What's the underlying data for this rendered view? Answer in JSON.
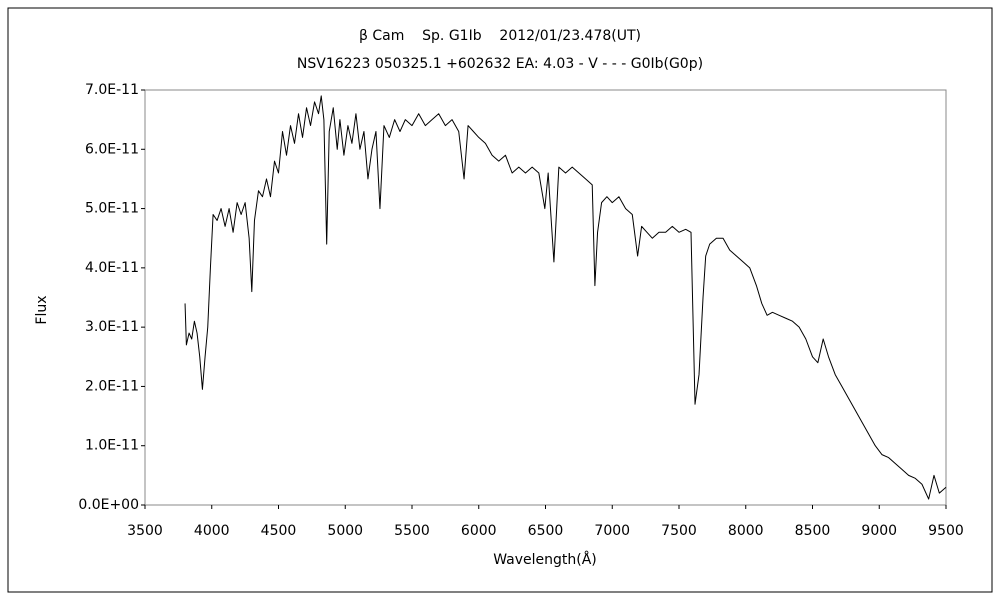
{
  "chart_data": {
    "type": "line",
    "title": "β Cam    Sp. G1Ib    2012/01/23.478(UT)",
    "subtitle": "NSV16223 050325.1 +602632 EA: 4.03 - V - - - G0Ib(G0p)",
    "x_label": "Wavelength(Å)",
    "y_label": "Flux",
    "color": "#000000",
    "grid": false,
    "xlim": [
      3500,
      9500
    ],
    "ylim": [
      0,
      7e-11
    ],
    "xticks": [
      3500,
      4000,
      4500,
      5000,
      5500,
      6000,
      6500,
      7000,
      7500,
      8000,
      8500,
      9000,
      9500
    ],
    "yticks": [
      {
        "value": 0,
        "label": "0.0E+00"
      },
      {
        "value": 1e-11,
        "label": "1.0E-11"
      },
      {
        "value": 2e-11,
        "label": "2.0E-11"
      },
      {
        "value": 3e-11,
        "label": "3.0E-11"
      },
      {
        "value": 4e-11,
        "label": "4.0E-11"
      },
      {
        "value": 5e-11,
        "label": "5.0E-11"
      },
      {
        "value": 6e-11,
        "label": "6.0E-11"
      },
      {
        "value": 7e-11,
        "label": "7.0E-11"
      }
    ],
    "x": [
      3800,
      3810,
      3830,
      3850,
      3870,
      3890,
      3910,
      3930,
      3950,
      3970,
      3990,
      4010,
      4040,
      4070,
      4100,
      4130,
      4160,
      4190,
      4220,
      4250,
      4280,
      4300,
      4320,
      4350,
      4380,
      4410,
      4440,
      4470,
      4500,
      4530,
      4560,
      4590,
      4620,
      4650,
      4680,
      4710,
      4740,
      4770,
      4800,
      4820,
      4840,
      4861,
      4880,
      4910,
      4940,
      4960,
      4990,
      5020,
      5050,
      5080,
      5110,
      5140,
      5170,
      5200,
      5230,
      5260,
      5290,
      5330,
      5370,
      5410,
      5450,
      5500,
      5550,
      5600,
      5650,
      5700,
      5750,
      5800,
      5850,
      5890,
      5920,
      5960,
      6000,
      6050,
      6100,
      6150,
      6200,
      6250,
      6300,
      6350,
      6400,
      6450,
      6495,
      6520,
      6563,
      6600,
      6650,
      6700,
      6750,
      6800,
      6850,
      6870,
      6890,
      6920,
      6960,
      7000,
      7050,
      7100,
      7150,
      7190,
      7220,
      7260,
      7300,
      7350,
      7400,
      7450,
      7500,
      7550,
      7590,
      7620,
      7650,
      7680,
      7700,
      7730,
      7780,
      7830,
      7880,
      7930,
      7980,
      8030,
      8080,
      8120,
      8160,
      8200,
      8250,
      8300,
      8350,
      8400,
      8450,
      8500,
      8540,
      8580,
      8620,
      8670,
      8720,
      8770,
      8820,
      8870,
      8920,
      8970,
      9020,
      9070,
      9120,
      9170,
      9220,
      9270,
      9320,
      9370,
      9410,
      9450,
      9500
    ],
    "values": [
      3.4e-11,
      2.7e-11,
      2.9e-11,
      2.8e-11,
      3.1e-11,
      2.9e-11,
      2.5e-11,
      1.95e-11,
      2.5e-11,
      3e-11,
      4e-11,
      4.9e-11,
      4.8e-11,
      5e-11,
      4.7e-11,
      5e-11,
      4.6e-11,
      5.1e-11,
      4.9e-11,
      5.1e-11,
      4.5e-11,
      3.6e-11,
      4.8e-11,
      5.3e-11,
      5.2e-11,
      5.5e-11,
      5.2e-11,
      5.8e-11,
      5.6e-11,
      6.3e-11,
      5.9e-11,
      6.4e-11,
      6.1e-11,
      6.6e-11,
      6.2e-11,
      6.7e-11,
      6.4e-11,
      6.8e-11,
      6.6e-11,
      6.9e-11,
      6.5e-11,
      4.4e-11,
      6.3e-11,
      6.7e-11,
      6e-11,
      6.5e-11,
      5.9e-11,
      6.4e-11,
      6.1e-11,
      6.6e-11,
      6e-11,
      6.3e-11,
      5.5e-11,
      6e-11,
      6.3e-11,
      5e-11,
      6.4e-11,
      6.2e-11,
      6.5e-11,
      6.3e-11,
      6.5e-11,
      6.4e-11,
      6.6e-11,
      6.4e-11,
      6.5e-11,
      6.6e-11,
      6.4e-11,
      6.5e-11,
      6.3e-11,
      5.5e-11,
      6.4e-11,
      6.3e-11,
      6.2e-11,
      6.1e-11,
      5.9e-11,
      5.8e-11,
      5.9e-11,
      5.6e-11,
      5.7e-11,
      5.6e-11,
      5.7e-11,
      5.6e-11,
      5e-11,
      5.6e-11,
      4.1e-11,
      5.7e-11,
      5.6e-11,
      5.7e-11,
      5.6e-11,
      5.5e-11,
      5.4e-11,
      3.7e-11,
      4.6e-11,
      5.1e-11,
      5.2e-11,
      5.1e-11,
      5.2e-11,
      5e-11,
      4.9e-11,
      4.2e-11,
      4.7e-11,
      4.6e-11,
      4.5e-11,
      4.6e-11,
      4.6e-11,
      4.7e-11,
      4.6e-11,
      4.65e-11,
      4.6e-11,
      1.7e-11,
      2.2e-11,
      3.5e-11,
      4.2e-11,
      4.4e-11,
      4.5e-11,
      4.5e-11,
      4.3e-11,
      4.2e-11,
      4.1e-11,
      4e-11,
      3.7e-11,
      3.4e-11,
      3.2e-11,
      3.25e-11,
      3.2e-11,
      3.15e-11,
      3.1e-11,
      3e-11,
      2.8e-11,
      2.5e-11,
      2.4e-11,
      2.8e-11,
      2.5e-11,
      2.2e-11,
      2e-11,
      1.8e-11,
      1.6e-11,
      1.4e-11,
      1.2e-11,
      1e-11,
      8.5e-12,
      8e-12,
      7e-12,
      6e-12,
      5e-12,
      4.5e-12,
      3.5e-12,
      1e-12,
      5e-12,
      2e-12,
      3e-12
    ]
  }
}
